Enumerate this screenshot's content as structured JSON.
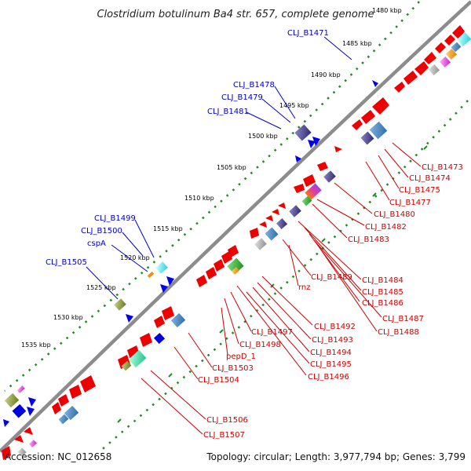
{
  "title": "Clostridium botulinum Ba4 str. 657, complete genome",
  "footer": {
    "accession": "Accession: NC_012658",
    "summary": "Topology: circular; Length: 3,977,794 bp; Genes: 3,799"
  },
  "colors": {
    "backbone": "#8c8c8c",
    "cds": "#ee0000",
    "tick_dots": "#228b22",
    "label_left": "#0000cc",
    "label_right": "#cc0000"
  },
  "kbp_labels": [
    "1480 kbp",
    "1485 kbp",
    "1490 kbp",
    "1495 kbp",
    "1500 kbp",
    "1505 kbp",
    "1510 kbp",
    "1515 kbp",
    "1520 kbp",
    "1525 kbp",
    "1530 kbp",
    "1535 kbp"
  ],
  "labels_left": [
    "CLJ_B1471",
    "CLJ_B1478",
    "CLJ_B1479",
    "CLJ_B1481",
    "CLJ_B1499",
    "CLJ_B1500",
    "cspA",
    "CLJ_B1505"
  ],
  "labels_right": [
    "CLJ_B1473",
    "CLJ_B1474",
    "CLJ_B1475",
    "CLJ_B1477",
    "CLJ_B1480",
    "CLJ_B1482",
    "CLJ_B1483",
    "CLJ_B1489",
    "rnz",
    "CLJ_B1484",
    "CLJ_B1485",
    "CLJ_B1486",
    "CLJ_B1487",
    "CLJ_B1488",
    "CLJ_B1492",
    "CLJ_B1493",
    "CLJ_B1494",
    "CLJ_B1495",
    "CLJ_B1496",
    "CLJ_B1497",
    "CLJ_B1498",
    "pepD_1",
    "CLJ_B1503",
    "CLJ_B1504",
    "CLJ_B1506",
    "CLJ_B1507"
  ]
}
